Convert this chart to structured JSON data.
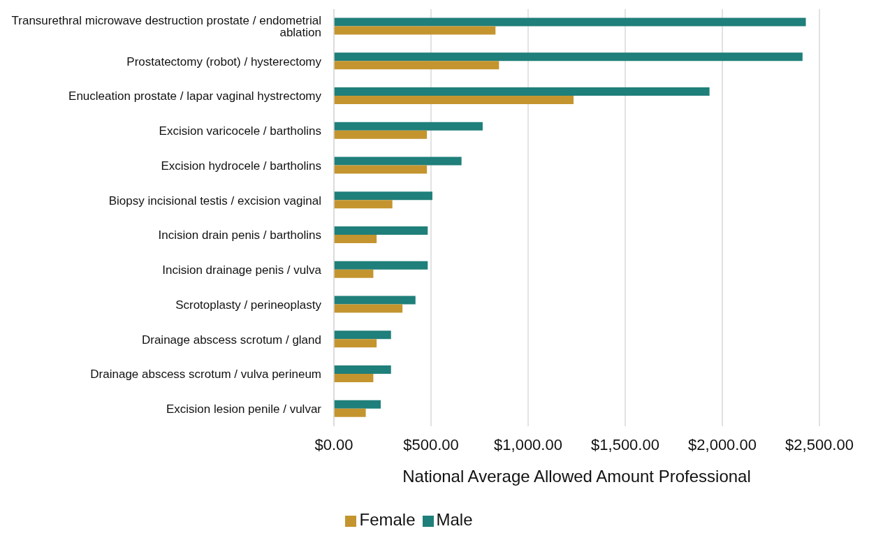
{
  "chart_data": {
    "type": "bar",
    "orientation": "horizontal",
    "xlabel": "National Average Allowed Amount Professional",
    "categories": [
      "Transurethral microwave destruction prostate / endometrial ablation",
      "Prostatectomy (robot) / hysterectomy",
      "Enucleation prostate / lapar vaginal hystrectomy",
      "Excision varicocele / bartholins",
      "Excision hydrocele / bartholins",
      "Biopsy incisional testis / excision vaginal",
      "Incision drain penis / bartholins",
      "Incision drainage penis / vulva",
      "Scrotoplasty / perineoplasty",
      "Drainage abscess scrotum / gland",
      "Drainage abscess scrotum / vulva perineum",
      "Excision lesion penile / vulvar"
    ],
    "series": [
      {
        "name": "Male",
        "color": "#1f7f7a",
        "values": [
          2430,
          2413,
          1934,
          766,
          657,
          507,
          483,
          483,
          420,
          294,
          294,
          241
        ]
      },
      {
        "name": "Female",
        "color": "#c4952f",
        "values": [
          832,
          850,
          1234,
          479,
          479,
          301,
          220,
          203,
          353,
          220,
          203,
          164
        ]
      }
    ],
    "xlim": [
      0,
      2500
    ],
    "xticks": [
      {
        "value": 0,
        "label": "$0.00"
      },
      {
        "value": 500,
        "label": "$500.00"
      },
      {
        "value": 1000,
        "label": "$1,000.00"
      },
      {
        "value": 1500,
        "label": "$1,500.00"
      },
      {
        "value": 2000,
        "label": "$2,000.00"
      },
      {
        "value": 2500,
        "label": "$2,500.00"
      }
    ],
    "grid": "x",
    "legend": "bottom"
  }
}
